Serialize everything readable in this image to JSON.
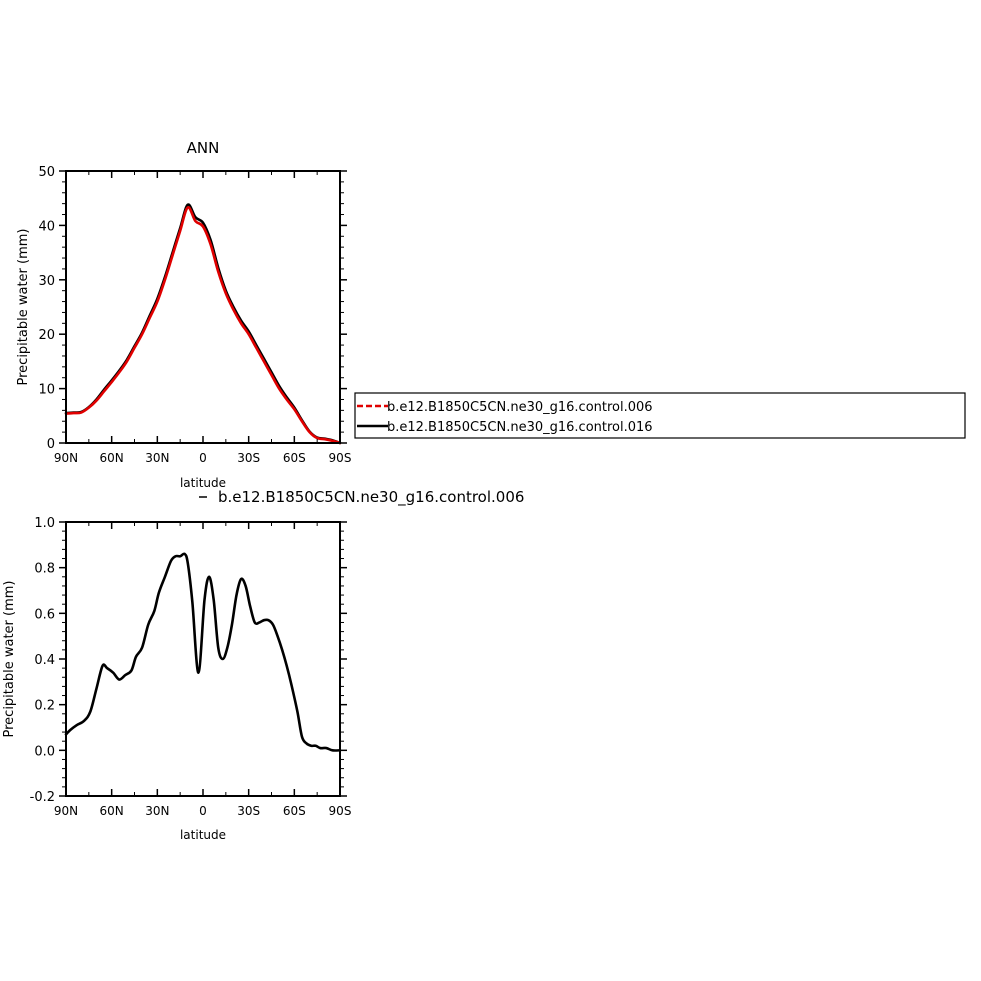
{
  "chart_data": [
    {
      "type": "line",
      "title": "ANN",
      "xlabel": "latitude",
      "ylabel": "Precipitable water (mm)",
      "xlim": [
        90,
        -90
      ],
      "ylim": [
        0,
        50
      ],
      "x_ticks": [
        90,
        60,
        30,
        0,
        -30,
        -60,
        -90
      ],
      "x_tick_labels": [
        "90N",
        "60N",
        "30N",
        "0",
        "30S",
        "60S",
        "90S"
      ],
      "y_ticks": [
        0,
        10,
        20,
        30,
        40,
        50
      ],
      "y_tick_labels": [
        "0",
        "10",
        "20",
        "30",
        "40",
        "50"
      ],
      "legend": {
        "placement": "right",
        "entries": [
          "b.e12.B1850C5CN.ne30_g16.control.006",
          "b.e12.B1850C5CN.ne30_g16.control.016"
        ]
      },
      "series": [
        {
          "name": "b.e12.B1850C5CN.ne30_g16.control.006",
          "color": "#e00000",
          "x": [
            90,
            85,
            80,
            75,
            70,
            65,
            60,
            55,
            50,
            45,
            40,
            35,
            30,
            25,
            20,
            15,
            10,
            5,
            0,
            -5,
            -10,
            -15,
            -20,
            -25,
            -30,
            -35,
            -40,
            -45,
            -50,
            -55,
            -60,
            -65,
            -70,
            -75,
            -80,
            -85,
            -90
          ],
          "values": [
            5.4,
            5.5,
            5.6,
            6.5,
            7.8,
            9.5,
            11.2,
            13.0,
            15.0,
            17.5,
            20.0,
            23.0,
            26.0,
            30.0,
            34.5,
            39.0,
            43.3,
            40.8,
            39.8,
            36.5,
            31.5,
            27.5,
            24.5,
            22.0,
            20.0,
            17.5,
            15.0,
            12.5,
            10.0,
            8.0,
            6.2,
            4.0,
            2.0,
            0.9,
            0.7,
            0.4,
            0.0
          ]
        },
        {
          "name": "b.e12.B1850C5CN.ne30_g16.control.016",
          "color": "#000000",
          "x": [
            90,
            85,
            80,
            75,
            70,
            65,
            60,
            55,
            50,
            45,
            40,
            35,
            30,
            25,
            20,
            15,
            10,
            5,
            0,
            -5,
            -10,
            -15,
            -20,
            -25,
            -30,
            -35,
            -40,
            -45,
            -50,
            -55,
            -60,
            -65,
            -70,
            -75,
            -80,
            -85,
            -90
          ],
          "values": [
            5.5,
            5.6,
            5.7,
            6.6,
            8.0,
            9.8,
            11.5,
            13.3,
            15.3,
            17.8,
            20.3,
            23.4,
            26.5,
            30.5,
            35.0,
            39.5,
            43.8,
            41.5,
            40.5,
            37.3,
            32.2,
            28.0,
            25.0,
            22.5,
            20.5,
            18.0,
            15.5,
            13.0,
            10.5,
            8.4,
            6.5,
            4.2,
            2.1,
            1.0,
            0.8,
            0.5,
            0.0
          ]
        }
      ]
    },
    {
      "type": "line",
      "title": "",
      "series_label": "b.e12.B1850C5CN.ne30_g16.control.006",
      "xlabel": "latitude",
      "ylabel": "Precipitable water (mm)",
      "xlim": [
        90,
        -90
      ],
      "ylim": [
        -0.2,
        1.0
      ],
      "x_ticks": [
        90,
        60,
        30,
        0,
        -30,
        -60,
        -90
      ],
      "x_tick_labels": [
        "90N",
        "60N",
        "30N",
        "0",
        "30S",
        "60S",
        "90S"
      ],
      "y_ticks": [
        -0.2,
        0.0,
        0.2,
        0.4,
        0.6,
        0.8,
        1.0
      ],
      "y_tick_labels": [
        "-0.2",
        "0.0",
        "0.2",
        "0.4",
        "0.6",
        "0.8",
        "1.0"
      ],
      "series": [
        {
          "name": "b.e12.B1850C5CN.ne30_g16.control.006",
          "color": "#000000",
          "x": [
            90,
            87,
            83,
            78,
            74,
            70,
            66,
            63,
            59,
            55,
            51,
            47,
            44,
            40,
            36,
            32,
            29,
            25,
            21,
            18,
            15,
            12,
            10,
            7,
            3,
            -1,
            -4,
            -7,
            -10,
            -13,
            -16,
            -19,
            -22,
            -25,
            -28,
            -31,
            -34,
            -37,
            -40,
            -43,
            -46,
            -49,
            -52,
            -55,
            -58,
            -62,
            -65,
            -68,
            -71,
            -74,
            -77,
            -81,
            -85,
            -90
          ],
          "values": [
            0.07,
            0.09,
            0.11,
            0.13,
            0.17,
            0.27,
            0.37,
            0.36,
            0.34,
            0.31,
            0.33,
            0.35,
            0.41,
            0.45,
            0.55,
            0.61,
            0.69,
            0.76,
            0.83,
            0.85,
            0.85,
            0.86,
            0.82,
            0.65,
            0.34,
            0.66,
            0.76,
            0.66,
            0.45,
            0.4,
            0.45,
            0.55,
            0.68,
            0.75,
            0.72,
            0.63,
            0.56,
            0.56,
            0.57,
            0.57,
            0.55,
            0.5,
            0.44,
            0.37,
            0.29,
            0.17,
            0.06,
            0.03,
            0.02,
            0.02,
            0.01,
            0.01,
            0.0,
            0.0
          ]
        }
      ]
    }
  ]
}
